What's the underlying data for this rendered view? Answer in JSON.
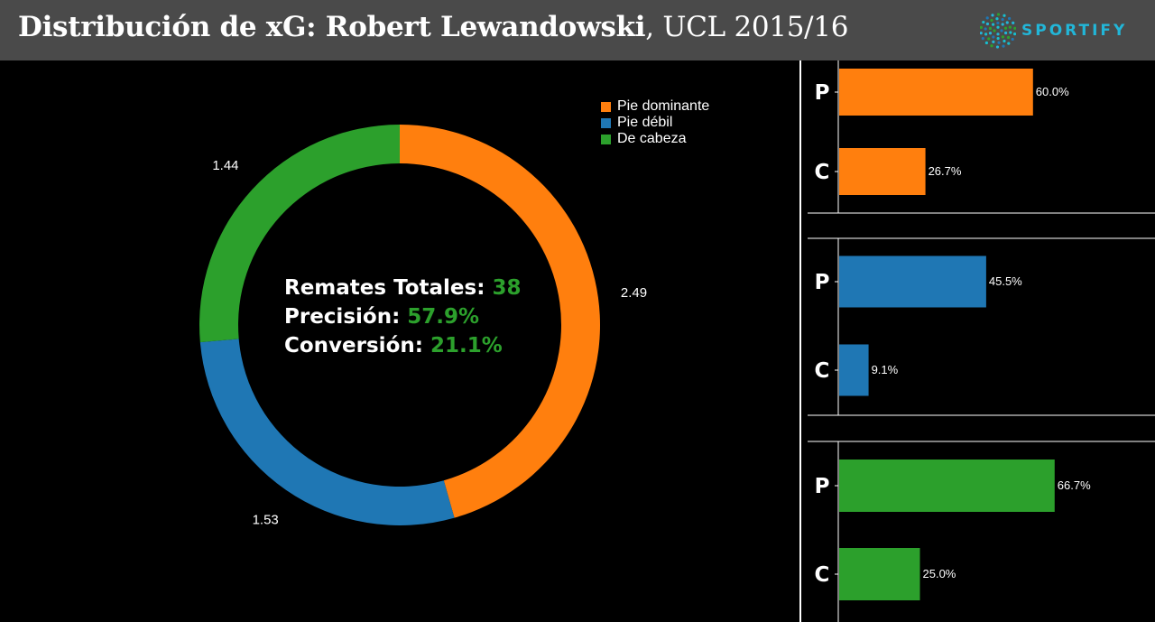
{
  "header": {
    "title_bold": "Distribución de xG: Robert Lewandowski",
    "title_light": ", UCL 2015/16",
    "brand": "SPORTIFY",
    "brand_icon": "globe-dots-icon"
  },
  "center_stats": [
    {
      "label": "Remates Totales:",
      "value": "38"
    },
    {
      "label": "Precisión:",
      "value": "57.9%"
    },
    {
      "label": "Conversión:",
      "value": "21.1%"
    }
  ],
  "chart_data": [
    {
      "type": "pie",
      "variant": "donut",
      "labels": [
        "Pie dominante",
        "Pie débil",
        "De cabeza"
      ],
      "values": [
        2.49,
        1.53,
        1.44
      ],
      "value_labels": [
        "2.49",
        "1.53",
        "1.44"
      ],
      "colors": [
        "#ff7f0e",
        "#1f77b4",
        "#2ca02c"
      ],
      "legend": "top-right"
    },
    {
      "type": "bar",
      "orientation": "horizontal",
      "categories": [
        "P",
        "C"
      ],
      "values": [
        60.0,
        26.7
      ],
      "value_labels": [
        "60.0%",
        "26.7%"
      ],
      "color": "#ff7f0e",
      "xlim": [
        0,
        100
      ]
    },
    {
      "type": "bar",
      "orientation": "horizontal",
      "categories": [
        "P",
        "C"
      ],
      "values": [
        45.5,
        9.1
      ],
      "value_labels": [
        "45.5%",
        "9.1%"
      ],
      "color": "#1f77b4",
      "xlim": [
        0,
        100
      ]
    },
    {
      "type": "bar",
      "orientation": "horizontal",
      "categories": [
        "P",
        "C"
      ],
      "values": [
        66.7,
        25.0
      ],
      "value_labels": [
        "66.7%",
        "25.0%"
      ],
      "color": "#2ca02c",
      "xlim": [
        0,
        100
      ]
    }
  ]
}
